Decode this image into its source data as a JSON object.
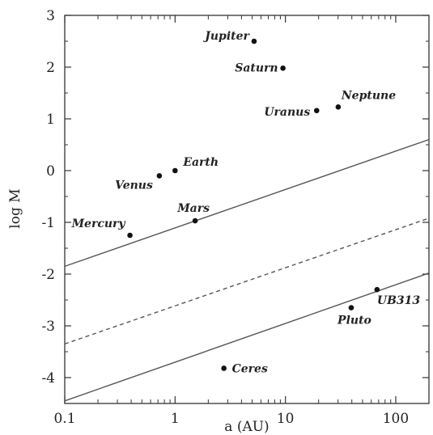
{
  "chart_data": {
    "type": "scatter",
    "xlabel": "a (AU)",
    "ylabel": "log M",
    "x_scale": "log",
    "xlim": [
      0.1,
      200
    ],
    "ylim": [
      -4.5,
      3
    ],
    "x_ticks": [
      {
        "value": 0.1,
        "label": "0.1"
      },
      {
        "value": 1,
        "label": "1"
      },
      {
        "value": 10,
        "label": "10"
      },
      {
        "value": 100,
        "label": "100"
      }
    ],
    "y_ticks": [
      {
        "value": 3,
        "label": "3"
      },
      {
        "value": 2,
        "label": "2"
      },
      {
        "value": 1,
        "label": "1"
      },
      {
        "value": 0,
        "label": "0"
      },
      {
        "value": -1,
        "label": "-1"
      },
      {
        "value": -2,
        "label": "-2"
      },
      {
        "value": -3,
        "label": "-3"
      },
      {
        "value": -4,
        "label": "-4"
      }
    ],
    "points": [
      {
        "label": "Mercury",
        "a": 0.39,
        "logM": -1.25
      },
      {
        "label": "Venus",
        "a": 0.72,
        "logM": -0.1
      },
      {
        "label": "Earth",
        "a": 1.0,
        "logM": 0.0
      },
      {
        "label": "Mars",
        "a": 1.52,
        "logM": -0.97
      },
      {
        "label": "Jupiter",
        "a": 5.2,
        "logM": 2.5
      },
      {
        "label": "Saturn",
        "a": 9.5,
        "logM": 1.98
      },
      {
        "label": "Uranus",
        "a": 19.2,
        "logM": 1.16
      },
      {
        "label": "Neptune",
        "a": 30.1,
        "logM": 1.23
      },
      {
        "label": "Ceres",
        "a": 2.77,
        "logM": -3.82
      },
      {
        "label": "Pluto",
        "a": 39.5,
        "logM": -2.65
      },
      {
        "label": "UB313",
        "a": 67.7,
        "logM": -2.3
      }
    ],
    "lines": [
      {
        "style": "solid",
        "x": [
          0.1,
          200
        ],
        "y": [
          -1.85,
          0.6
        ]
      },
      {
        "style": "dashed",
        "x": [
          0.1,
          200
        ],
        "y": [
          -3.35,
          -0.92
        ]
      },
      {
        "style": "solid",
        "x": [
          0.1,
          200
        ],
        "y": [
          -4.45,
          -1.98
        ]
      }
    ],
    "grid": false,
    "legend": "none"
  }
}
